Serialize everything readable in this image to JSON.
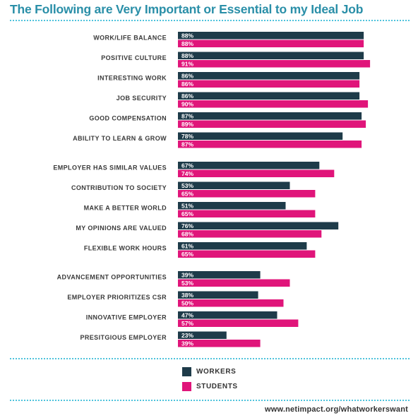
{
  "colors": {
    "title": "#2a8fa8",
    "dots": "#4fc3dc",
    "workers": "#1e3b49",
    "students": "#e0157a",
    "label": "#3a3a3a"
  },
  "chart_data": {
    "type": "bar",
    "orientation": "horizontal",
    "title": "The Following are Very Important or Essential to my Ideal Job",
    "categories": [
      "WORK/LIFE BALANCE",
      "POSITIVE CULTURE",
      "INTERESTING WORK",
      "JOB SECURITY",
      "GOOD COMPENSATION",
      "ABILITY TO LEARN & GROW",
      "EMPLOYER HAS SIMILAR VALUES",
      "CONTRIBUTION TO SOCIETY",
      "MAKE A BETTER WORLD",
      "MY OPINIONS ARE VALUED",
      "FLEXIBLE WORK HOURS",
      "ADVANCEMENT OPPORTUNITIES",
      "EMPLOYER PRIORITIZES CSR",
      "INNOVATIVE EMPLOYER",
      "PRESITGIOUS EMPLOYER"
    ],
    "groups": [
      [
        0,
        1,
        2,
        3,
        4,
        5
      ],
      [
        6,
        7,
        8,
        9,
        10
      ],
      [
        11,
        12,
        13,
        14
      ]
    ],
    "series": [
      {
        "name": "WORKERS",
        "values": [
          88,
          88,
          86,
          86,
          87,
          78,
          67,
          53,
          51,
          76,
          61,
          39,
          38,
          47,
          23
        ]
      },
      {
        "name": "STUDENTS",
        "values": [
          88,
          91,
          86,
          90,
          89,
          87,
          74,
          65,
          65,
          68,
          65,
          53,
          50,
          57,
          39
        ]
      }
    ],
    "value_suffix": "%",
    "xlim": [
      0,
      100
    ],
    "legend": "bottom-left",
    "grid": false
  },
  "footer": {
    "url": "www.netimpact.org/whatworkerswant"
  }
}
